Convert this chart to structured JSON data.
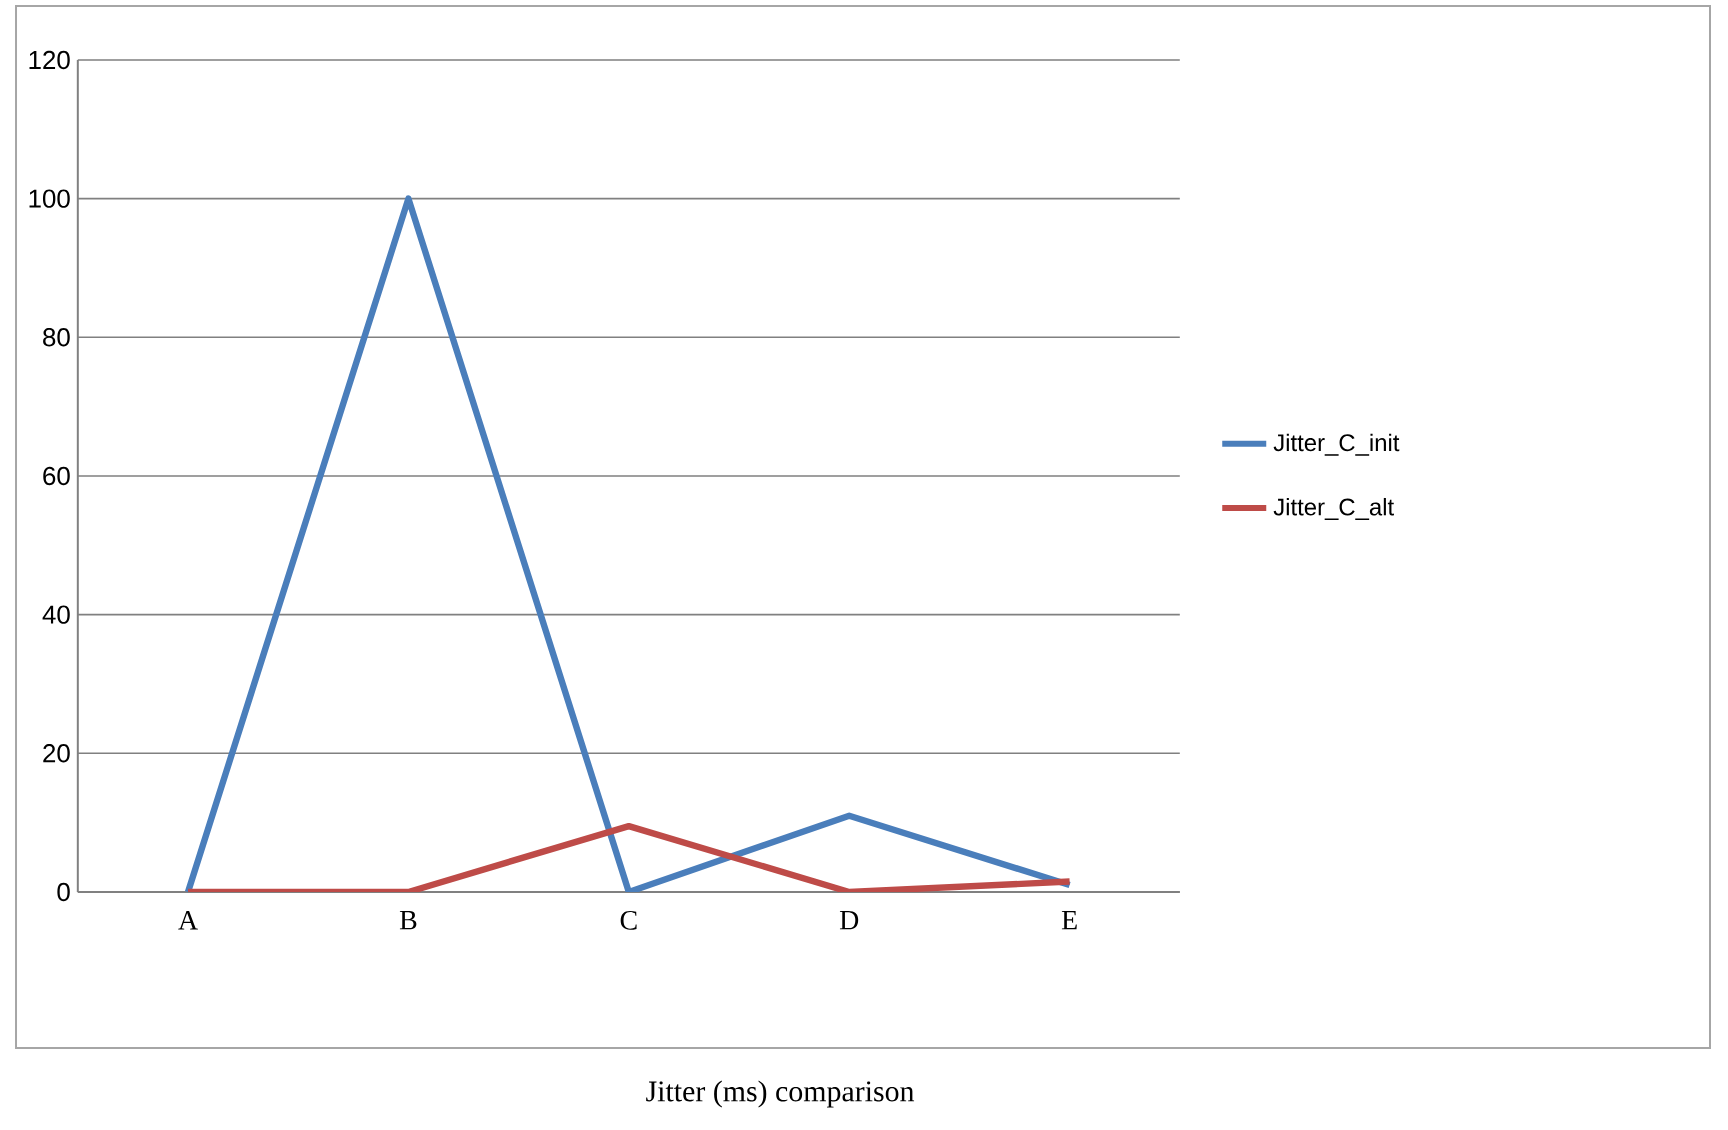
{
  "chart_data": {
    "type": "line",
    "title": "Jitter (ms) comparison",
    "categories": [
      "A",
      "B",
      "C",
      "D",
      "E"
    ],
    "series": [
      {
        "name": "Jitter_C_init",
        "color": "#4a7ebb",
        "values": [
          0,
          100,
          0,
          11,
          1
        ]
      },
      {
        "name": "Jitter_C_alt",
        "color": "#be4b48",
        "values": [
          0,
          0,
          9.5,
          0,
          1.5
        ]
      }
    ],
    "ylim": [
      0,
      120
    ],
    "yticks": [
      0,
      20,
      40,
      60,
      80,
      100,
      120
    ],
    "grid": "y",
    "legend": "right",
    "marker": "none",
    "line_style": "solid"
  }
}
